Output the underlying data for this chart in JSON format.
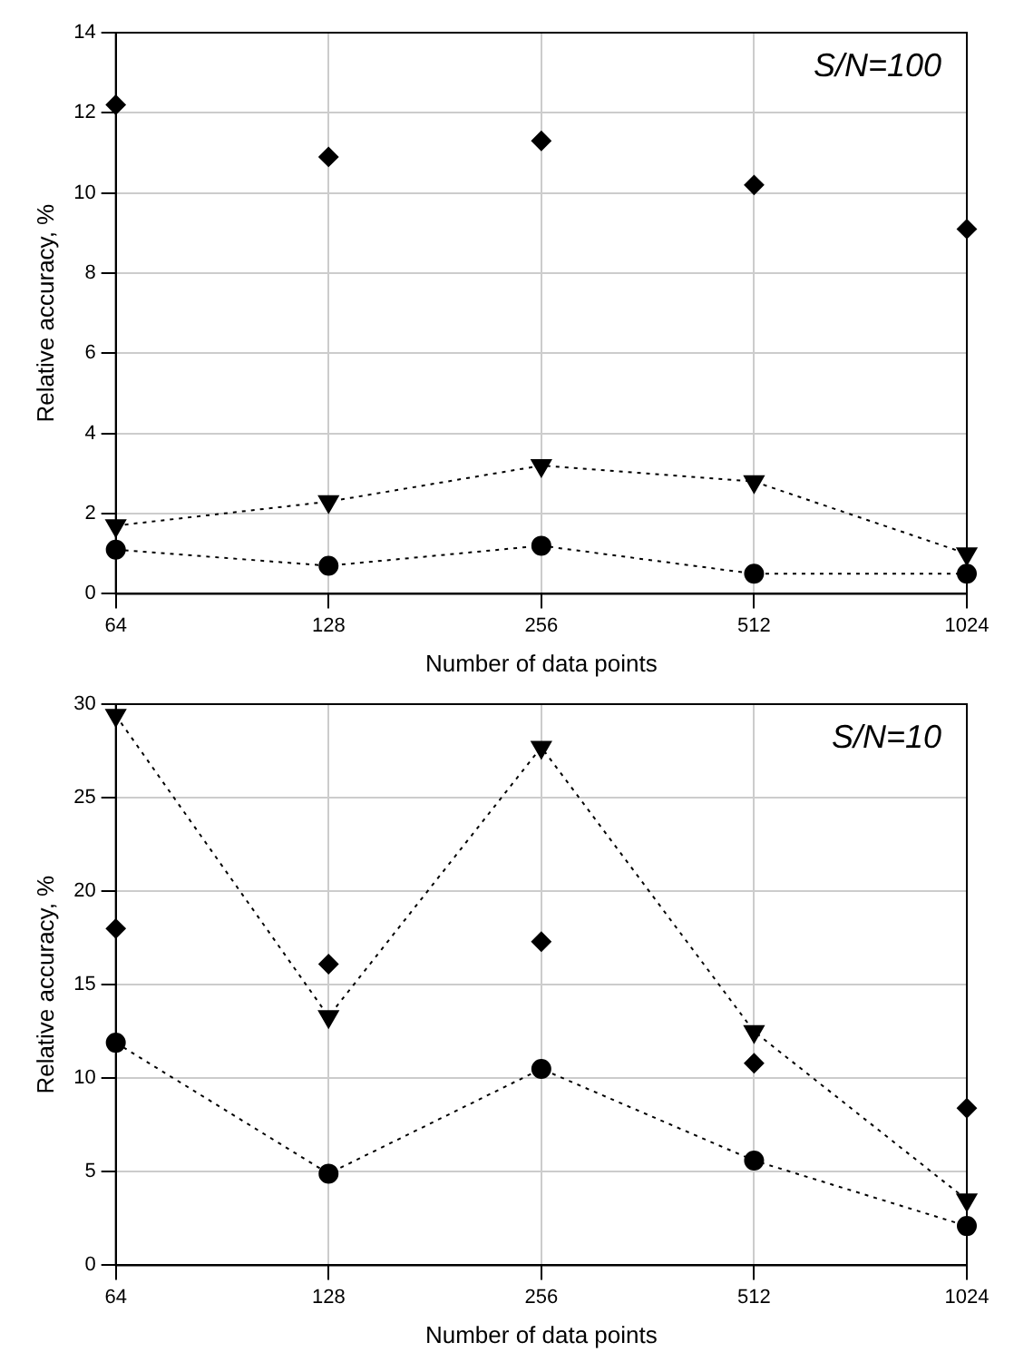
{
  "chart_data": [
    {
      "type": "line",
      "xlabel": "Number of data points",
      "ylabel": "Relative accuracy, %",
      "annotations": [
        "S/N=100"
      ],
      "categories": [
        "64",
        "128",
        "256",
        "512",
        "1024"
      ],
      "ylim": [
        0,
        14
      ],
      "yticks": [
        0,
        2,
        4,
        6,
        8,
        10,
        12,
        14
      ],
      "grid": true,
      "line_style": "dotted",
      "series": [
        {
          "type": "scatter",
          "marker": "diamond",
          "color": "#000000",
          "values": [
            12.2,
            10.9,
            11.3,
            10.2,
            9.1
          ]
        },
        {
          "marker": "triangle",
          "color": "#000000",
          "values": [
            1.7,
            2.3,
            3.2,
            2.8,
            1.0
          ]
        },
        {
          "marker": "circle",
          "color": "#000000",
          "values": [
            1.1,
            0.7,
            1.2,
            0.5,
            0.5
          ]
        }
      ]
    },
    {
      "type": "line",
      "xlabel": "Number of data points",
      "ylabel": "Relative accuracy, %",
      "annotations": [
        "S/N=10"
      ],
      "categories": [
        "64",
        "128",
        "256",
        "512",
        "1024"
      ],
      "ylim": [
        0,
        30
      ],
      "yticks": [
        0,
        5,
        10,
        15,
        20,
        25,
        30
      ],
      "grid": true,
      "line_style": "dotted",
      "series": [
        {
          "type": "scatter",
          "marker": "diamond",
          "color": "#000000",
          "values": [
            18.0,
            16.1,
            17.3,
            10.8,
            8.4
          ]
        },
        {
          "marker": "triangle",
          "color": "#000000",
          "values": [
            29.4,
            13.3,
            27.7,
            12.5,
            3.5
          ]
        },
        {
          "marker": "circle",
          "color": "#000000",
          "values": [
            11.9,
            4.9,
            10.5,
            5.6,
            2.1
          ]
        }
      ]
    }
  ]
}
